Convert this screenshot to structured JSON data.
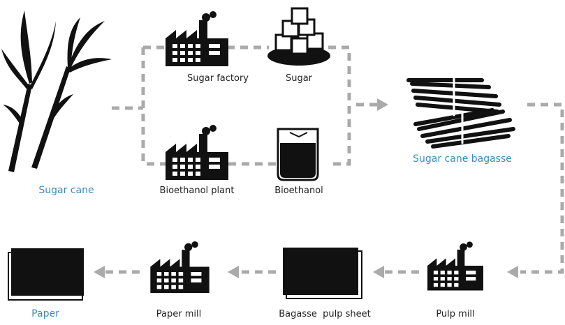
{
  "nodes": [
    {
      "label": "Sugar cane"
    },
    {
      "label": "Sugar factory"
    },
    {
      "label": "Sugar"
    },
    {
      "label": "Bioethanol plant"
    },
    {
      "label": "Bioethanol"
    },
    {
      "label": "Sugar cane bagasse"
    },
    {
      "label": "Pulp mill"
    },
    {
      "label": "Bagasse  pulp sheet"
    },
    {
      "label": "Paper mill"
    },
    {
      "label": "Paper"
    }
  ]
}
